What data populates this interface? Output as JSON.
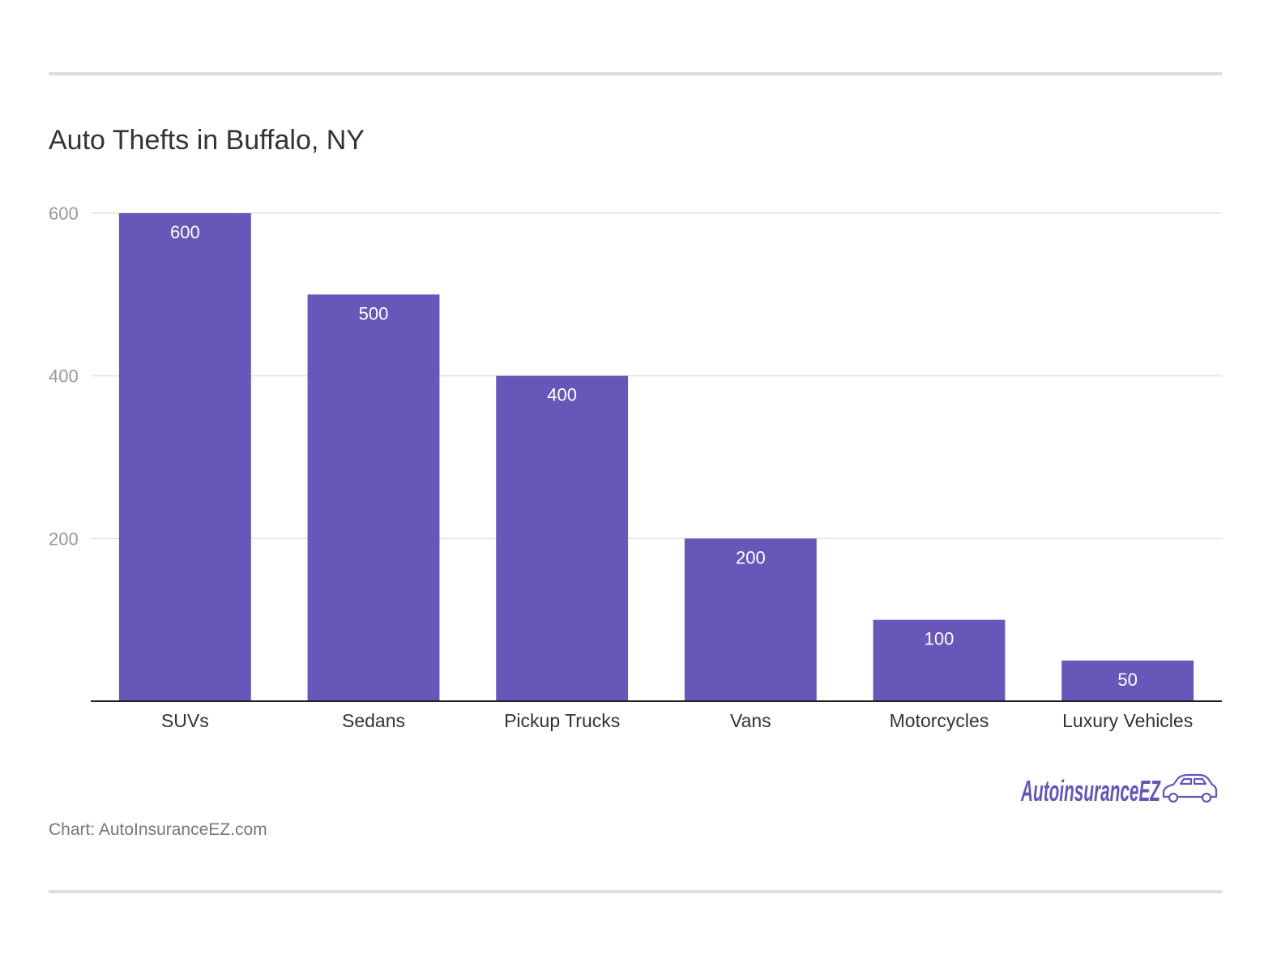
{
  "title": "Auto Thefts in Buffalo, NY",
  "source": "Chart: AutoInsuranceEZ.com",
  "logo": {
    "text": "AutoinsuranceEZ",
    "icon": "car-icon"
  },
  "colors": {
    "bar": "#6857b9",
    "bar_label": "#ffffff",
    "axis": "#222222",
    "grid": "#e2e2e2",
    "tick_label": "#999999",
    "category_label": "#333333",
    "logo": "#6455b9"
  },
  "chart_data": {
    "type": "bar",
    "categories": [
      "SUVs",
      "Sedans",
      "Pickup Trucks",
      "Vans",
      "Motorcycles",
      "Luxury Vehicles"
    ],
    "values": [
      600,
      500,
      400,
      200,
      100,
      50
    ],
    "title": "Auto Thefts in Buffalo, NY",
    "xlabel": "",
    "ylabel": "",
    "ylim": [
      0,
      600
    ],
    "yticks": [
      200,
      400,
      600
    ],
    "grid": true,
    "legend": "none",
    "data_labels": true
  }
}
